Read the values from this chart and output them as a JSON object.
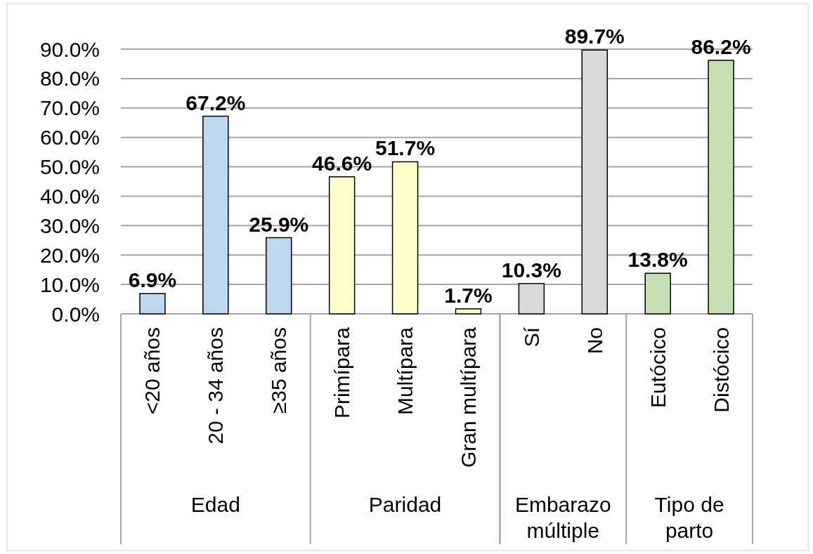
{
  "chart_data": {
    "type": "bar",
    "categories": [
      "<20 años",
      "20 - 34 años",
      "≥35 años",
      "Primípara",
      "Multípara",
      "Gran multípara",
      "Sí",
      "No",
      "Eutócico",
      "Distócico"
    ],
    "series": [
      {
        "color": "#bdd7ee",
        "values": [
          6.9,
          67.2,
          25.9,
          null,
          null,
          null,
          null,
          null,
          null,
          null
        ],
        "value_labels": [
          "6.9%",
          "67.2%",
          "25.9%",
          null,
          null,
          null,
          null,
          null,
          null,
          null
        ]
      },
      {
        "color": "#ffffcc",
        "values": [
          null,
          null,
          null,
          46.6,
          51.7,
          1.7,
          null,
          null,
          null,
          null
        ],
        "value_labels": [
          null,
          null,
          null,
          "46.6%",
          "51.7%",
          "1.7%",
          null,
          null,
          null,
          null
        ]
      },
      {
        "color": "#d9d9d9",
        "values": [
          null,
          null,
          null,
          null,
          null,
          null,
          10.3,
          89.7,
          null,
          null
        ],
        "value_labels": [
          null,
          null,
          null,
          null,
          null,
          null,
          "10.3%",
          "89.7%",
          null,
          null
        ]
      },
      {
        "color": "#c6e0b4",
        "values": [
          null,
          null,
          null,
          null,
          null,
          null,
          null,
          null,
          13.8,
          86.2
        ],
        "value_labels": [
          null,
          null,
          null,
          null,
          null,
          null,
          null,
          null,
          "13.8%",
          "86.2%"
        ]
      }
    ],
    "annotations": [
      "Edad",
      "Paridad",
      "Embarazo múltiple",
      "Tipo de parto"
    ],
    "ylim": [
      0,
      90
    ],
    "yticks": [
      {
        "value": 0,
        "label": "0.0%"
      },
      {
        "value": 10,
        "label": "10.0%"
      },
      {
        "value": 20,
        "label": "20.0%"
      },
      {
        "value": 30,
        "label": "30.0%"
      },
      {
        "value": 40,
        "label": "40.0%"
      },
      {
        "value": 50,
        "label": "50.0%"
      },
      {
        "value": 60,
        "label": "60.0%"
      },
      {
        "value": 70,
        "label": "70.0%"
      },
      {
        "value": 80,
        "label": "80.0%"
      },
      {
        "value": 90,
        "label": "90.0%"
      }
    ],
    "grid": "y"
  }
}
